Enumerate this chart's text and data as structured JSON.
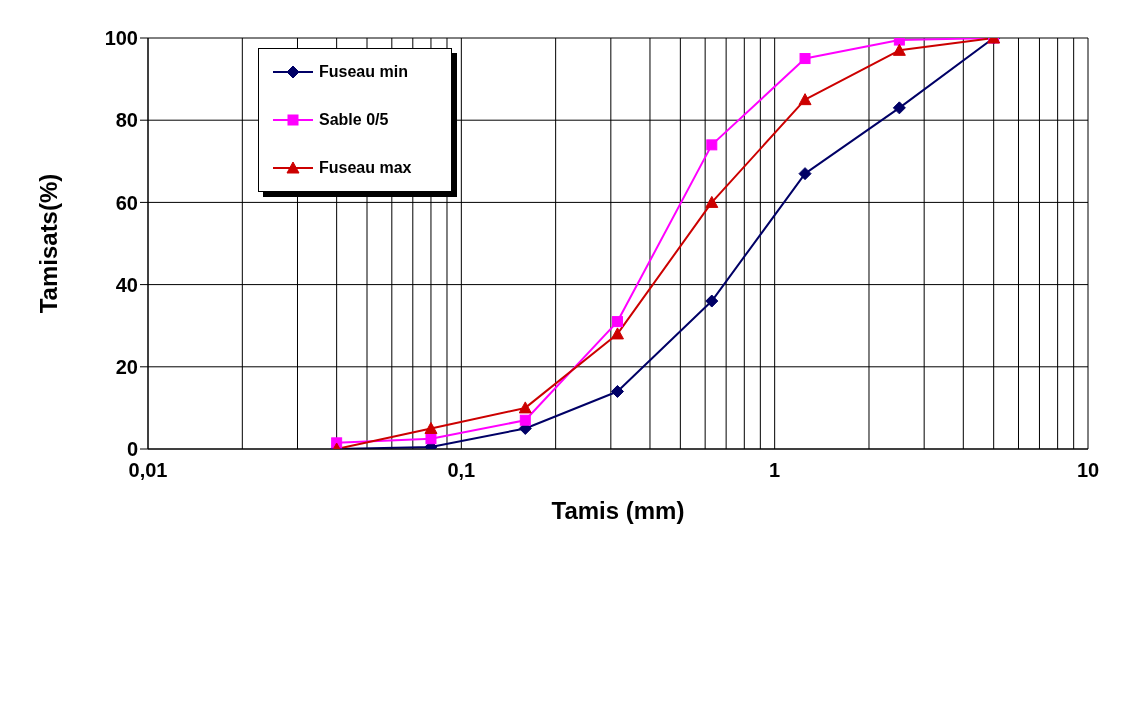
{
  "chart_data": {
    "type": "line",
    "xlabel": "Tamis (mm)",
    "ylabel": "Tamisats(%)",
    "log": "x",
    "grid": true,
    "legend": "top left",
    "x": [
      0.04,
      0.08,
      0.16,
      0.315,
      0.63,
      1.25,
      2.5,
      5
    ],
    "xlim": [
      0.01,
      10
    ],
    "xticks": [
      {
        "value": 0.01,
        "label": "0,01"
      },
      {
        "value": 0.02,
        "label": null
      },
      {
        "value": 0.03,
        "label": null
      },
      {
        "value": 0.04,
        "label": null
      },
      {
        "value": 0.05,
        "label": null
      },
      {
        "value": 0.06,
        "label": null
      },
      {
        "value": 0.07,
        "label": null
      },
      {
        "value": 0.08,
        "label": null
      },
      {
        "value": 0.09,
        "label": null
      },
      {
        "value": 0.1,
        "label": "0,1"
      },
      {
        "value": 0.2,
        "label": null
      },
      {
        "value": 0.3,
        "label": null
      },
      {
        "value": 0.4,
        "label": null
      },
      {
        "value": 0.5,
        "label": null
      },
      {
        "value": 0.6,
        "label": null
      },
      {
        "value": 0.7,
        "label": null
      },
      {
        "value": 0.8,
        "label": null
      },
      {
        "value": 0.9,
        "label": null
      },
      1,
      {
        "value": 2,
        "label": null
      },
      {
        "value": 3,
        "label": null
      },
      {
        "value": 4,
        "label": null
      },
      {
        "value": 5,
        "label": null
      },
      {
        "value": 6,
        "label": null
      },
      {
        "value": 7,
        "label": null
      },
      {
        "value": 8,
        "label": null
      },
      {
        "value": 9,
        "label": null
      },
      10
    ],
    "ylim": [
      0,
      100
    ],
    "yticks": [
      0,
      20,
      40,
      60,
      80,
      100
    ],
    "series": [
      {
        "name": "Fuseau min",
        "color": "#000066",
        "marker": "diamond",
        "values": [
          0,
          0.5,
          5,
          14,
          36,
          67,
          83,
          100
        ]
      },
      {
        "name": "Sable 0/5",
        "color": "#ff00ff",
        "marker": "square",
        "values": [
          1.5,
          2.5,
          7,
          31,
          74,
          95,
          99.5,
          100
        ]
      },
      {
        "name": "Fuseau max",
        "color": "#cc0000",
        "marker": "triangle",
        "values": [
          0,
          5,
          10,
          28,
          60,
          85,
          97,
          100
        ]
      }
    ]
  }
}
